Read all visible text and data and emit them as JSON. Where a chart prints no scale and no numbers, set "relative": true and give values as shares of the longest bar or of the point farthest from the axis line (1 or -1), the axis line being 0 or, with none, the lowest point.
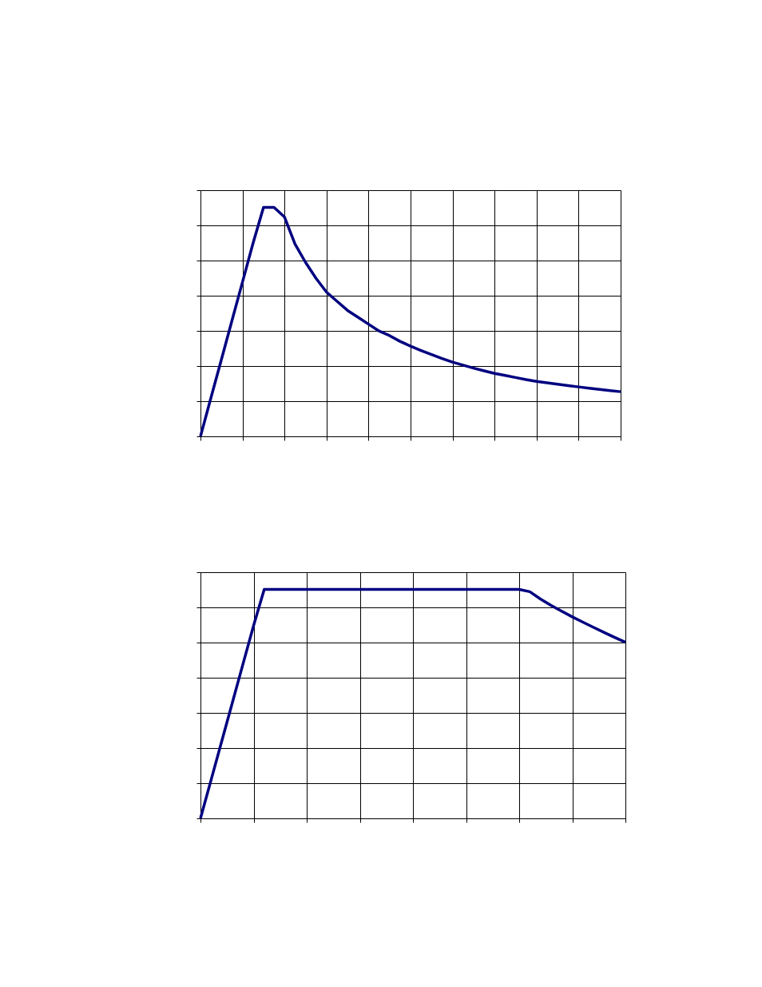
{
  "chart_data": [
    {
      "type": "line",
      "relative": true,
      "grid": true,
      "tick_labels": false,
      "line_style": "solid",
      "marker": "none",
      "categories": [
        null,
        null,
        null,
        null,
        null,
        null,
        null,
        null,
        null,
        null,
        null,
        null,
        null,
        null,
        null,
        null,
        null,
        null,
        null,
        null,
        null,
        null,
        null,
        null,
        null,
        null,
        null,
        null,
        null,
        null,
        null,
        null,
        null,
        null,
        null,
        null,
        null,
        null,
        null,
        null,
        null
      ],
      "series": [
        {
          "color": "#000080",
          "values": [
            0,
            0.169,
            0.337,
            0.506,
            0.674,
            0.843,
            1.0,
            1.0,
            0.958,
            0.84,
            0.76,
            0.69,
            0.63,
            0.59,
            0.55,
            0.52,
            0.49,
            0.46,
            0.44,
            0.415,
            0.394,
            0.375,
            0.357,
            0.34,
            0.324,
            0.311,
            0.298,
            0.286,
            0.275,
            0.266,
            0.257,
            0.248,
            0.24,
            0.234,
            0.228,
            0.222,
            0.216,
            0.21,
            0.205,
            0.2,
            0.195
          ]
        }
      ]
    },
    {
      "type": "line",
      "relative": true,
      "grid": true,
      "tick_labels": false,
      "line_style": "solid",
      "marker": "none",
      "categories": [
        null,
        null,
        null,
        null,
        null,
        null,
        null,
        null,
        null,
        null,
        null,
        null,
        null,
        null,
        null,
        null,
        null,
        null,
        null,
        null,
        null,
        null,
        null,
        null,
        null,
        null,
        null,
        null,
        null,
        null,
        null,
        null,
        null,
        null,
        null,
        null,
        null,
        null,
        null,
        null,
        null
      ],
      "series": [
        {
          "color": "#000080",
          "values": [
            0,
            0.168,
            0.337,
            0.505,
            0.674,
            0.842,
            1.0,
            1.0,
            1.0,
            1.0,
            1.0,
            1.0,
            1.0,
            1.0,
            1.0,
            1.0,
            1.0,
            1.0,
            1.0,
            1.0,
            1.0,
            1.0,
            1.0,
            1.0,
            1.0,
            1.0,
            1.0,
            1.0,
            1.0,
            1.0,
            1.0,
            0.99,
            0.958,
            0.93,
            0.905,
            0.88,
            0.857,
            0.834,
            0.812,
            0.79,
            0.769
          ]
        }
      ]
    }
  ]
}
